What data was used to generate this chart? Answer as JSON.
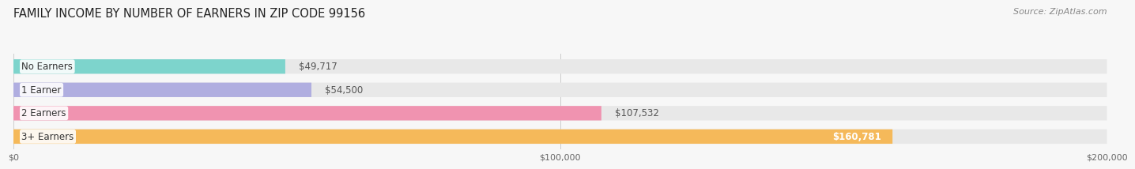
{
  "title": "FAMILY INCOME BY NUMBER OF EARNERS IN ZIP CODE 99156",
  "source": "Source: ZipAtlas.com",
  "categories": [
    "No Earners",
    "1 Earner",
    "2 Earners",
    "3+ Earners"
  ],
  "values": [
    49717,
    54500,
    107532,
    160781
  ],
  "bar_colors": [
    "#7dd4cc",
    "#b0aee0",
    "#f093b0",
    "#f5b95a"
  ],
  "label_values": [
    "$49,717",
    "$54,500",
    "$107,532",
    "$160,781"
  ],
  "xmax": 200000,
  "xticks": [
    0,
    100000,
    200000
  ],
  "xtick_labels": [
    "$0",
    "$100,000",
    "$200,000"
  ],
  "bg_color": "#f7f7f7",
  "bar_bg_color": "#e8e8e8",
  "title_fontsize": 10.5,
  "source_fontsize": 8,
  "label_fontsize": 8.5,
  "cat_fontsize": 8.5
}
